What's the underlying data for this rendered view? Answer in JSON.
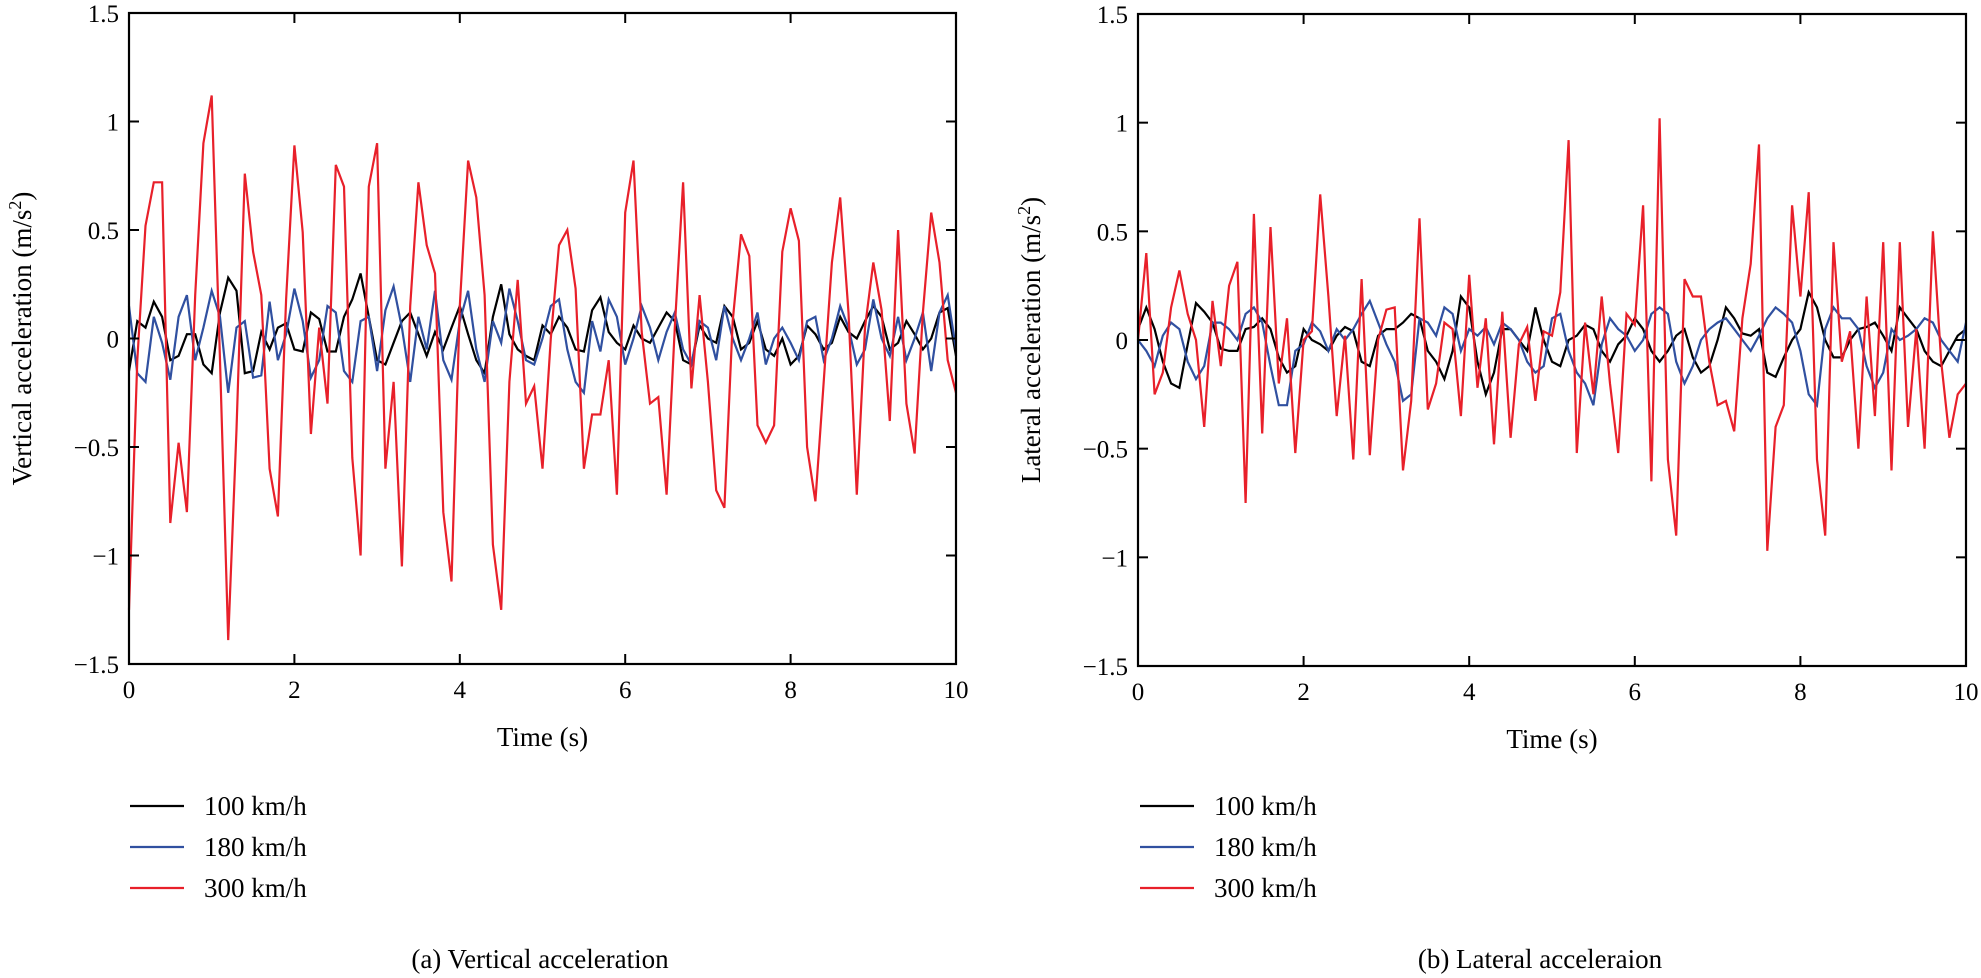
{
  "chart_data": [
    {
      "type": "line",
      "panel": "a",
      "caption": "(a)  Vertical acceleration",
      "xlabel": "Time (s)",
      "ylabel": "Vertical acceleration (m/s",
      "ylabel_sup": "2",
      "ylabel_close": ")",
      "xlim": [
        0,
        10
      ],
      "ylim": [
        -1.5,
        1.5
      ],
      "xticks": [
        0,
        2,
        4,
        6,
        8,
        10
      ],
      "xtick_labels": [
        "0",
        "2",
        "4",
        "6",
        "8",
        "10"
      ],
      "yticks": [
        -1.5,
        -1,
        -0.5,
        0,
        0.5,
        1,
        1.5
      ],
      "ytick_labels": [
        "−1.5",
        "−1",
        "−0.5",
        "0",
        "0.5",
        "1",
        "1.5"
      ],
      "grid": false,
      "legend_position": "below-left",
      "x_start": 0,
      "x_step": 0.1,
      "series": [
        {
          "name": "100 km/h",
          "color": "#000000",
          "values": [
            -0.15,
            0.08,
            0.05,
            0.17,
            0.1,
            -0.1,
            -0.08,
            0.02,
            0.02,
            -0.12,
            -0.16,
            0.12,
            0.28,
            0.22,
            -0.16,
            -0.15,
            0.03,
            -0.05,
            0.05,
            0.07,
            -0.05,
            -0.06,
            0.12,
            0.09,
            -0.06,
            -0.06,
            0.1,
            0.18,
            0.3,
            0.1,
            -0.1,
            -0.12,
            -0.02,
            0.08,
            0.12,
            0.02,
            -0.08,
            0.03,
            -0.05,
            0.05,
            0.15,
            0.02,
            -0.1,
            -0.16,
            0.1,
            0.25,
            0.02,
            -0.05,
            -0.08,
            -0.1,
            0.06,
            0.02,
            0.1,
            0.05,
            -0.05,
            -0.06,
            0.13,
            0.19,
            0.03,
            -0.02,
            -0.05,
            0.06,
            0.0,
            -0.02,
            0.05,
            0.12,
            0.08,
            -0.1,
            -0.12,
            0.06,
            0.0,
            -0.02,
            0.15,
            0.1,
            -0.05,
            -0.02,
            0.08,
            -0.05,
            -0.08,
            0.0,
            -0.12,
            -0.08,
            0.06,
            0.02,
            -0.05,
            -0.02,
            0.1,
            0.03,
            0.0,
            0.08,
            0.15,
            0.1,
            -0.05,
            -0.02,
            0.08,
            0.02,
            -0.05,
            0.0,
            0.12,
            0.14,
            -0.08
          ]
        },
        {
          "name": "180 km/h",
          "color": "#3050a0",
          "values": [
            0.15,
            -0.16,
            -0.2,
            0.1,
            -0.02,
            -0.19,
            0.1,
            0.2,
            -0.1,
            0.05,
            0.22,
            0.1,
            -0.25,
            0.05,
            0.08,
            -0.18,
            -0.17,
            0.17,
            -0.1,
            0.02,
            0.23,
            0.08,
            -0.18,
            -0.1,
            0.15,
            0.12,
            -0.15,
            -0.2,
            0.08,
            0.1,
            -0.15,
            0.13,
            0.24,
            0.05,
            -0.2,
            0.1,
            -0.05,
            0.22,
            -0.1,
            -0.19,
            0.08,
            0.22,
            -0.05,
            -0.2,
            0.08,
            -0.02,
            0.23,
            0.08,
            -0.1,
            -0.12,
            0.0,
            0.15,
            0.18,
            -0.05,
            -0.2,
            -0.25,
            0.08,
            -0.06,
            0.18,
            0.1,
            -0.12,
            0.0,
            0.15,
            0.05,
            -0.1,
            0.03,
            0.12,
            -0.05,
            -0.12,
            0.08,
            0.05,
            -0.1,
            0.15,
            0.0,
            -0.1,
            0.0,
            0.12,
            -0.12,
            0.0,
            0.05,
            -0.02,
            -0.1,
            0.08,
            0.1,
            -0.1,
            0.0,
            0.15,
            0.05,
            -0.12,
            -0.05,
            0.18,
            0.0,
            -0.08,
            0.1,
            -0.1,
            0.0,
            0.12,
            -0.15,
            0.12,
            0.2,
            -0.05
          ]
        },
        {
          "name": "300 km/h",
          "color": "#e8202a",
          "values": [
            -1.25,
            -0.1,
            0.52,
            0.72,
            0.72,
            -0.85,
            -0.48,
            -0.8,
            0.2,
            0.9,
            1.12,
            -0.1,
            -1.39,
            -0.42,
            0.76,
            0.4,
            0.2,
            -0.6,
            -0.82,
            0.18,
            0.89,
            0.49,
            -0.44,
            0.05,
            -0.3,
            0.8,
            0.7,
            -0.55,
            -1.0,
            0.7,
            0.9,
            -0.6,
            -0.2,
            -1.05,
            0.15,
            0.72,
            0.43,
            0.3,
            -0.8,
            -1.12,
            0.15,
            0.82,
            0.65,
            0.2,
            -0.95,
            -1.25,
            -0.2,
            0.27,
            -0.3,
            -0.22,
            -0.6,
            0.0,
            0.43,
            0.5,
            0.23,
            -0.6,
            -0.35,
            -0.35,
            -0.1,
            -0.72,
            0.58,
            0.82,
            0.03,
            -0.3,
            -0.27,
            -0.72,
            0.05,
            0.72,
            -0.23,
            0.2,
            -0.2,
            -0.7,
            -0.78,
            0.08,
            0.48,
            0.38,
            -0.4,
            -0.48,
            -0.4,
            0.4,
            0.6,
            0.45,
            -0.5,
            -0.75,
            -0.2,
            0.35,
            0.65,
            0.12,
            -0.72,
            0.05,
            0.35,
            0.13,
            -0.38,
            0.5,
            -0.3,
            -0.53,
            0.12,
            0.58,
            0.35,
            -0.1,
            -0.25
          ]
        }
      ]
    },
    {
      "type": "line",
      "panel": "b",
      "caption": "(b)  Lateral acceleraion",
      "xlabel": "Time (s)",
      "ylabel": "Lateral acceleration (m/s",
      "ylabel_sup": "2",
      "ylabel_close": ")",
      "xlim": [
        0,
        10
      ],
      "ylim": [
        -1.5,
        1.5
      ],
      "xticks": [
        0,
        2,
        4,
        6,
        8,
        10
      ],
      "xtick_labels": [
        "0",
        "2",
        "4",
        "6",
        "8",
        "10"
      ],
      "yticks": [
        -1.5,
        -1,
        -0.5,
        0,
        0.5,
        1,
        1.5
      ],
      "ytick_labels": [
        "−1.5",
        "−1",
        "−0.5",
        "0",
        "0.5",
        "1",
        "1.5"
      ],
      "grid": false,
      "legend_position": "below-left",
      "x_start": 0,
      "x_step": 0.1,
      "series": [
        {
          "name": "100 km/h",
          "color": "#000000",
          "values": [
            0.05,
            0.15,
            0.05,
            -0.1,
            -0.2,
            -0.22,
            -0.02,
            0.17,
            0.13,
            0.08,
            -0.04,
            -0.05,
            -0.05,
            0.05,
            0.06,
            0.1,
            0.05,
            -0.08,
            -0.15,
            -0.12,
            0.05,
            0.0,
            -0.02,
            -0.05,
            0.02,
            0.06,
            0.04,
            -0.1,
            -0.12,
            0.02,
            0.05,
            0.05,
            0.08,
            0.12,
            0.1,
            -0.05,
            -0.1,
            -0.18,
            -0.05,
            0.2,
            0.15,
            -0.1,
            -0.25,
            -0.15,
            0.05,
            0.05,
            0.0,
            -0.05,
            0.15,
            0.0,
            -0.1,
            -0.12,
            0.0,
            0.02,
            0.07,
            0.05,
            -0.05,
            -0.1,
            -0.02,
            0.02,
            0.1,
            0.05,
            -0.05,
            -0.1,
            -0.05,
            0.02,
            0.05,
            -0.08,
            -0.15,
            -0.12,
            0.0,
            0.15,
            0.1,
            0.03,
            0.02,
            0.05,
            -0.15,
            -0.17,
            -0.08,
            0.0,
            0.05,
            0.22,
            0.15,
            0.0,
            -0.08,
            -0.08,
            0.0,
            0.05,
            0.06,
            0.08,
            0.02,
            -0.05,
            0.15,
            0.1,
            0.05,
            -0.05,
            -0.1,
            -0.12,
            -0.05,
            0.02,
            0.05
          ]
        },
        {
          "name": "180 km/h",
          "color": "#3050a0",
          "values": [
            0.0,
            -0.05,
            -0.12,
            0.02,
            0.08,
            0.05,
            -0.1,
            -0.18,
            -0.12,
            0.08,
            0.08,
            0.05,
            0.0,
            0.12,
            0.15,
            0.08,
            -0.12,
            -0.3,
            -0.3,
            -0.05,
            -0.02,
            0.08,
            0.04,
            -0.05,
            0.05,
            0.0,
            0.05,
            0.12,
            0.18,
            0.08,
            -0.02,
            -0.1,
            -0.28,
            -0.25,
            0.1,
            0.08,
            0.02,
            0.15,
            0.12,
            -0.05,
            0.05,
            0.02,
            0.06,
            -0.02,
            0.08,
            0.05,
            0.0,
            -0.1,
            -0.15,
            -0.12,
            0.1,
            0.12,
            -0.05,
            -0.15,
            -0.2,
            -0.3,
            -0.02,
            0.1,
            0.05,
            0.02,
            -0.05,
            0.0,
            0.12,
            0.15,
            0.12,
            -0.1,
            -0.2,
            -0.12,
            0.0,
            0.05,
            0.08,
            0.1,
            0.05,
            0.0,
            -0.05,
            0.02,
            0.1,
            0.15,
            0.12,
            0.08,
            -0.05,
            -0.25,
            -0.3,
            0.05,
            0.15,
            0.1,
            0.1,
            0.05,
            -0.12,
            -0.22,
            -0.15,
            0.05,
            0.0,
            0.02,
            0.05,
            0.1,
            0.08,
            0.0,
            -0.05,
            -0.1,
            0.08
          ]
        },
        {
          "name": "300 km/h",
          "color": "#e8202a",
          "values": [
            0.0,
            0.4,
            -0.25,
            -0.15,
            0.15,
            0.32,
            0.12,
            0.0,
            -0.4,
            0.18,
            -0.12,
            0.25,
            0.36,
            -0.75,
            0.58,
            -0.43,
            0.52,
            -0.2,
            0.1,
            -0.52,
            0.0,
            0.04,
            0.67,
            0.2,
            -0.35,
            0.02,
            -0.55,
            0.28,
            -0.53,
            0.0,
            0.14,
            0.15,
            -0.6,
            -0.28,
            0.56,
            -0.32,
            -0.2,
            0.08,
            0.05,
            -0.35,
            0.3,
            -0.22,
            0.1,
            -0.48,
            0.13,
            -0.45,
            -0.02,
            0.06,
            -0.28,
            0.04,
            0.02,
            0.22,
            0.92,
            -0.52,
            0.08,
            -0.25,
            0.2,
            -0.2,
            -0.52,
            0.12,
            0.07,
            0.62,
            -0.65,
            1.02,
            -0.55,
            -0.9,
            0.28,
            0.2,
            0.2,
            -0.1,
            -0.3,
            -0.28,
            -0.42,
            0.1,
            0.35,
            0.9,
            -0.97,
            -0.4,
            -0.3,
            0.62,
            0.2,
            0.68,
            -0.55,
            -0.9,
            0.45,
            -0.1,
            0.04,
            -0.5,
            0.2,
            -0.35,
            0.45,
            -0.6,
            0.45,
            -0.4,
            0.05,
            -0.5,
            0.5,
            -0.1,
            -0.45,
            -0.25,
            -0.2
          ]
        }
      ]
    }
  ]
}
